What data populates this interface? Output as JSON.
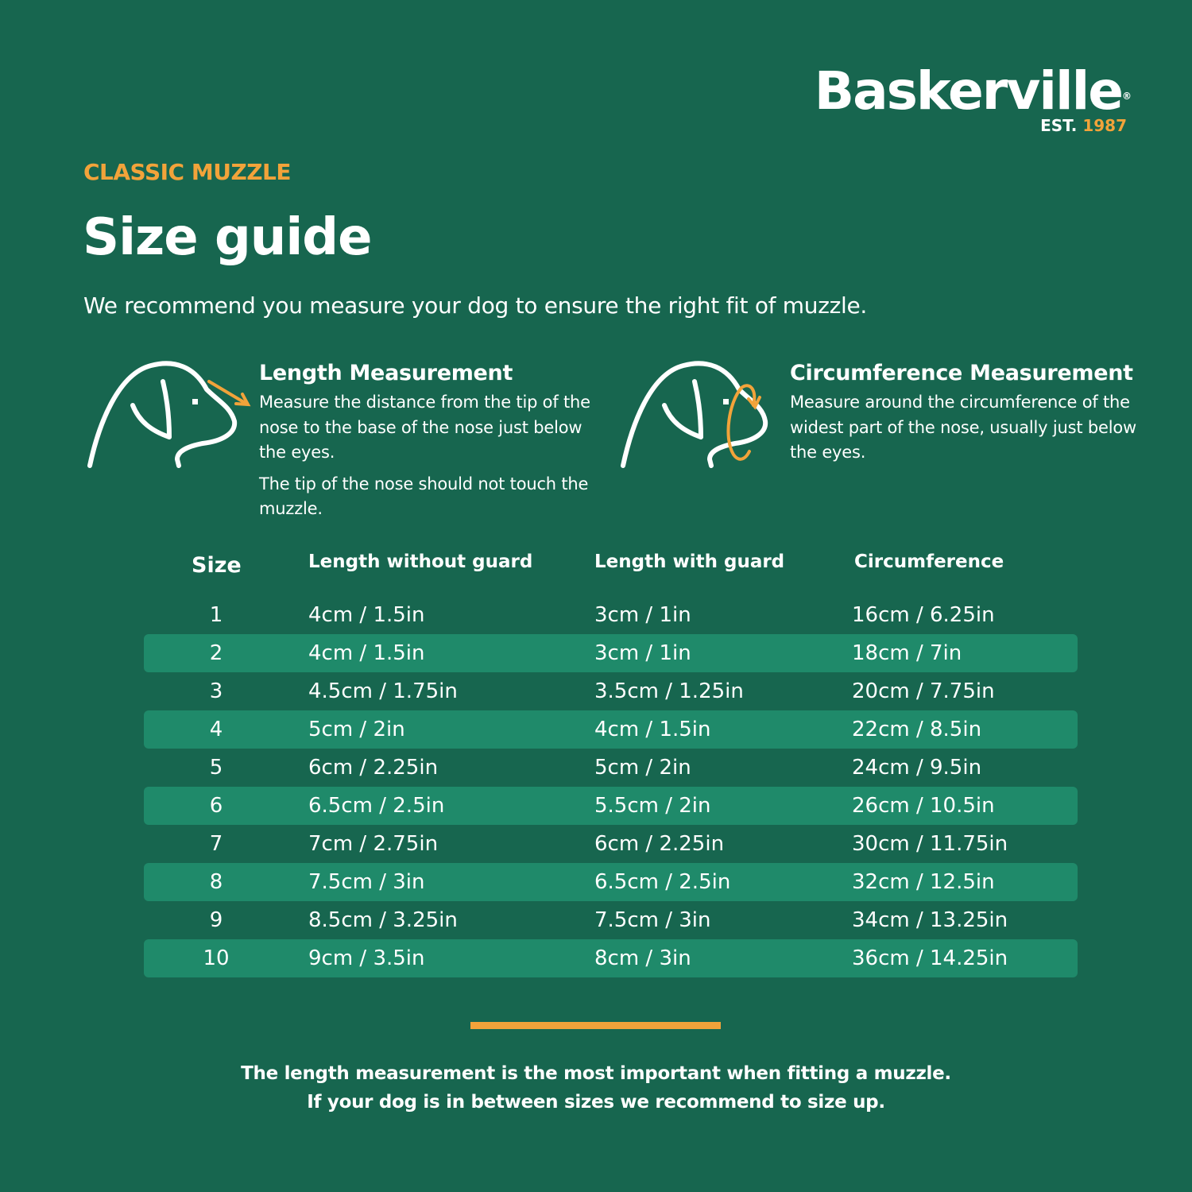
{
  "brand": {
    "name": "Baskerville",
    "registered": "®",
    "est_label": "EST.",
    "est_year": "1987"
  },
  "colors": {
    "background": "#17664f",
    "stripe": "#1f8a6a",
    "accent": "#f2a33a",
    "text": "#ffffff"
  },
  "header": {
    "eyebrow": "CLASSIC MUZZLE",
    "title": "Size guide",
    "intro": "We recommend you measure your dog to ensure the right fit of muzzle."
  },
  "measurements": [
    {
      "icon": "dog-head-length-arrow-icon",
      "heading": "Length Measurement",
      "paragraphs": [
        "Measure the distance from the tip of the nose to the base of the nose just below the eyes.",
        "The tip of the nose should not touch the muzzle."
      ]
    },
    {
      "icon": "dog-head-circumference-loop-icon",
      "heading": "Circumference Measurement",
      "paragraphs": [
        "Measure around the circumference of the widest part of the nose, usually just below the eyes."
      ]
    }
  ],
  "table": {
    "headers": [
      "Size",
      "Length without guard",
      "Length with guard",
      "Circumference"
    ],
    "rows": [
      [
        "1",
        "4cm / 1.5in",
        "3cm / 1in",
        "16cm / 6.25in"
      ],
      [
        "2",
        "4cm / 1.5in",
        "3cm / 1in",
        "18cm / 7in"
      ],
      [
        "3",
        "4.5cm / 1.75in",
        "3.5cm / 1.25in",
        "20cm / 7.75in"
      ],
      [
        "4",
        "5cm / 2in",
        "4cm / 1.5in",
        "22cm / 8.5in"
      ],
      [
        "5",
        "6cm / 2.25in",
        "5cm / 2in",
        "24cm / 9.5in"
      ],
      [
        "6",
        "6.5cm / 2.5in",
        "5.5cm / 2in",
        "26cm / 10.5in"
      ],
      [
        "7",
        "7cm / 2.75in",
        "6cm / 2.25in",
        "30cm / 11.75in"
      ],
      [
        "8",
        "7.5cm / 3in",
        "6.5cm / 2.5in",
        "32cm / 12.5in"
      ],
      [
        "9",
        "8.5cm / 3.25in",
        "7.5cm / 3in",
        "34cm / 13.25in"
      ],
      [
        "10",
        "9cm / 3.5in",
        "8cm / 3in",
        "36cm / 14.25in"
      ]
    ]
  },
  "footer": {
    "line1": "The length measurement is the most important when fitting a muzzle.",
    "line2": "If your dog is in between sizes we recommend to size up."
  }
}
